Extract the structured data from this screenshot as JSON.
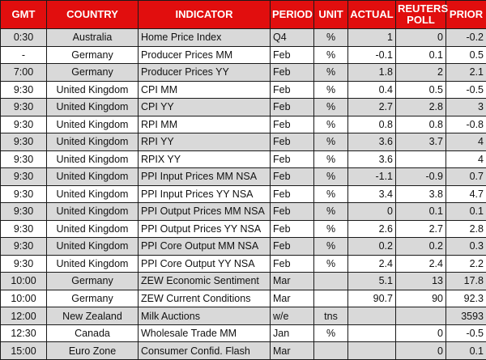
{
  "chart_data": {
    "type": "table",
    "columns": [
      "GMT",
      "COUNTRY",
      "INDICATOR",
      "PERIOD",
      "UNIT",
      "ACTUAL",
      "REUTERS POLL",
      "PRIOR"
    ],
    "column_keys": [
      "gmt",
      "country",
      "indicator",
      "period",
      "unit",
      "actual",
      "reuters-poll",
      "prior"
    ],
    "rows": [
      [
        "0:30",
        "Australia",
        "Home Price Index",
        "Q4",
        "%",
        "1",
        "0",
        "-0.2"
      ],
      [
        "-",
        "Germany",
        "Producer Prices MM",
        "Feb",
        "%",
        "-0.1",
        "0.1",
        "0.5"
      ],
      [
        "7:00",
        "Germany",
        "Producer Prices YY",
        "Feb",
        "%",
        "1.8",
        "2",
        "2.1"
      ],
      [
        "9:30",
        "United Kingdom",
        "CPI MM",
        "Feb",
        "%",
        "0.4",
        "0.5",
        "-0.5"
      ],
      [
        "9:30",
        "United Kingdom",
        "CPI YY",
        "Feb",
        "%",
        "2.7",
        "2.8",
        "3"
      ],
      [
        "9:30",
        "United Kingdom",
        "RPI MM",
        "Feb",
        "%",
        "0.8",
        "0.8",
        "-0.8"
      ],
      [
        "9:30",
        "United Kingdom",
        "RPI YY",
        "Feb",
        "%",
        "3.6",
        "3.7",
        "4"
      ],
      [
        "9:30",
        "United Kingdom",
        "RPIX YY",
        "Feb",
        "%",
        "3.6",
        "",
        "4"
      ],
      [
        "9:30",
        "United Kingdom",
        "PPI Input Prices MM NSA",
        "Feb",
        "%",
        "-1.1",
        "-0.9",
        "0.7"
      ],
      [
        "9:30",
        "United Kingdom",
        "PPI Input Prices YY NSA",
        "Feb",
        "%",
        "3.4",
        "3.8",
        "4.7"
      ],
      [
        "9:30",
        "United Kingdom",
        "PPI Output Prices MM NSA",
        "Feb",
        "%",
        "0",
        "0.1",
        "0.1"
      ],
      [
        "9:30",
        "United Kingdom",
        "PPI Output Prices YY NSA",
        "Feb",
        "%",
        "2.6",
        "2.7",
        "2.8"
      ],
      [
        "9:30",
        "United Kingdom",
        "PPI Core Output MM NSA",
        "Feb",
        "%",
        "0.2",
        "0.2",
        "0.3"
      ],
      [
        "9:30",
        "United Kingdom",
        "PPI Core Output YY NSA",
        "Feb",
        "%",
        "2.4",
        "2.4",
        "2.2"
      ],
      [
        "10:00",
        "Germany",
        "ZEW Economic Sentiment",
        "Mar",
        "",
        "5.1",
        "13",
        "17.8"
      ],
      [
        "10:00",
        "Germany",
        "ZEW Current Conditions",
        "Mar",
        "",
        "90.7",
        "90",
        "92.3"
      ],
      [
        "12:00",
        "New Zealand",
        "Milk Auctions",
        "w/e",
        "tns",
        "",
        "",
        "3593"
      ],
      [
        "12:30",
        "Canada",
        "Wholesale Trade MM",
        "Jan",
        "%",
        "",
        "0",
        "-0.5"
      ],
      [
        "15:00",
        "Euro Zone",
        "Consumer Confid. Flash",
        "Mar",
        "",
        "",
        "0",
        "0.1"
      ]
    ],
    "colors": {
      "header_bg": "#E10E0E",
      "header_text": "#FFFFFF",
      "row_shaded": "#D9D9D9",
      "row_plain": "#FFFFFF",
      "border": "#1A1A1A",
      "text": "#111111"
    }
  }
}
